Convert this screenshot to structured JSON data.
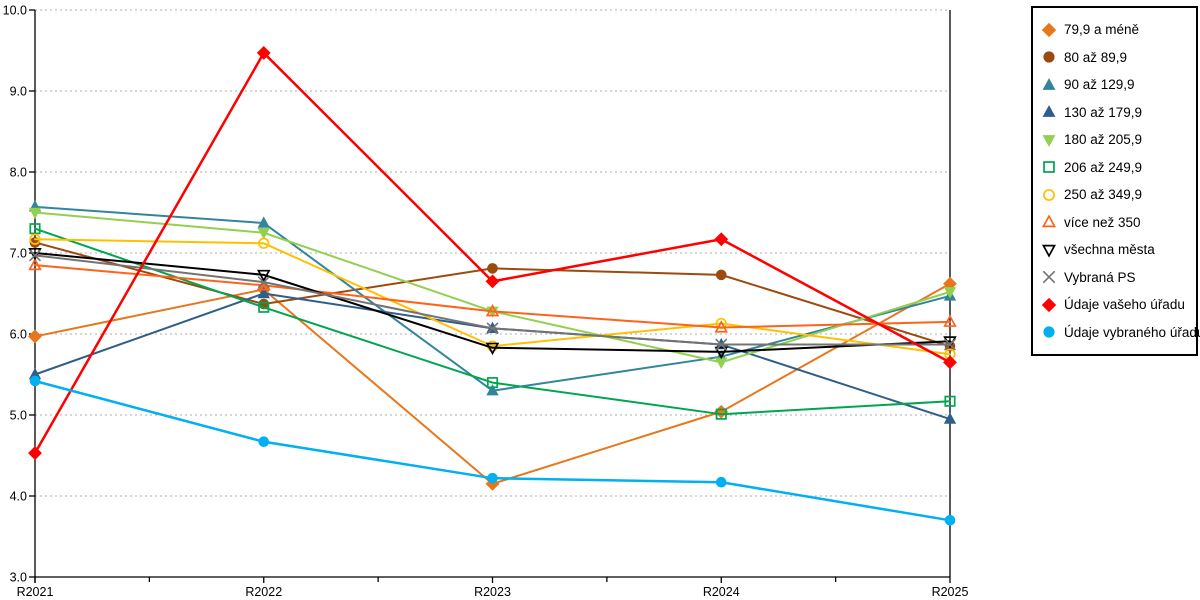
{
  "chart_data": {
    "type": "line",
    "title": "",
    "xlabel": "",
    "ylabel": "",
    "x_categories": [
      "R2021",
      "R2022",
      "R2023",
      "R2024",
      "R2025"
    ],
    "ylim": [
      3.0,
      10.0
    ],
    "y_tick_labels": [
      "3.0",
      "4.0",
      "5.0",
      "6.0",
      "7.0",
      "8.0",
      "9.0",
      "10.0"
    ],
    "grid": "horizontal dashed gridlines at integer values",
    "legend_position": "right-outside-boxed",
    "series": [
      {
        "name": "79,9 a méně",
        "color": "#E8761B",
        "marker": "diamond",
        "filled": true,
        "line_width": 2,
        "values": [
          5.97,
          6.55,
          4.15,
          5.04,
          6.62
        ]
      },
      {
        "name": "80 až 89,9",
        "color": "#9C4A0E",
        "marker": "circle",
        "filled": true,
        "line_width": 2,
        "values": [
          7.13,
          6.37,
          6.81,
          6.73,
          5.85
        ]
      },
      {
        "name": "90 až 129,9",
        "color": "#31859C",
        "marker": "triangle-up",
        "filled": true,
        "line_width": 2,
        "values": [
          7.57,
          7.37,
          5.3,
          5.72,
          6.47
        ]
      },
      {
        "name": "130 až 179,9",
        "color": "#2E5F8A",
        "marker": "triangle-up",
        "filled": true,
        "line_width": 2,
        "values": [
          5.5,
          6.5,
          6.07,
          5.87,
          4.95
        ]
      },
      {
        "name": "180 až 205,9",
        "color": "#92D050",
        "marker": "triangle-down",
        "filled": true,
        "line_width": 2,
        "values": [
          7.5,
          7.25,
          6.28,
          5.65,
          6.52
        ]
      },
      {
        "name": "206 až 249,9",
        "color": "#00A550",
        "marker": "square",
        "filled": false,
        "line_width": 2,
        "values": [
          7.3,
          6.33,
          5.4,
          5.01,
          5.17
        ]
      },
      {
        "name": "250 až 349,9",
        "color": "#FFC000",
        "marker": "circle",
        "filled": false,
        "line_width": 2,
        "values": [
          7.17,
          7.12,
          5.85,
          6.13,
          5.75
        ]
      },
      {
        "name": "více než 350",
        "color": "#FF6319",
        "marker": "triangle-up",
        "filled": false,
        "line_width": 2,
        "values": [
          6.85,
          6.6,
          6.28,
          6.08,
          6.15
        ]
      },
      {
        "name": "všechna města",
        "color": "#000000",
        "marker": "triangle-down",
        "filled": false,
        "line_width": 2,
        "values": [
          7.0,
          6.73,
          5.83,
          5.78,
          5.91
        ]
      },
      {
        "name": "Vybraná PS",
        "color": "#737373",
        "marker": "x",
        "filled": false,
        "line_width": 2,
        "values": [
          6.97,
          6.64,
          6.07,
          5.87,
          5.87
        ]
      },
      {
        "name": "Údaje vašeho úřadu",
        "color": "#FF0000",
        "marker": "diamond",
        "filled": true,
        "line_width": 2.5,
        "values": [
          4.53,
          9.47,
          6.65,
          7.17,
          5.65
        ]
      },
      {
        "name": "Údaje vybraného úřadu",
        "color": "#00B0F0",
        "marker": "circle",
        "filled": true,
        "line_width": 2.5,
        "values": [
          5.42,
          4.67,
          4.22,
          4.17,
          3.7
        ]
      }
    ]
  }
}
